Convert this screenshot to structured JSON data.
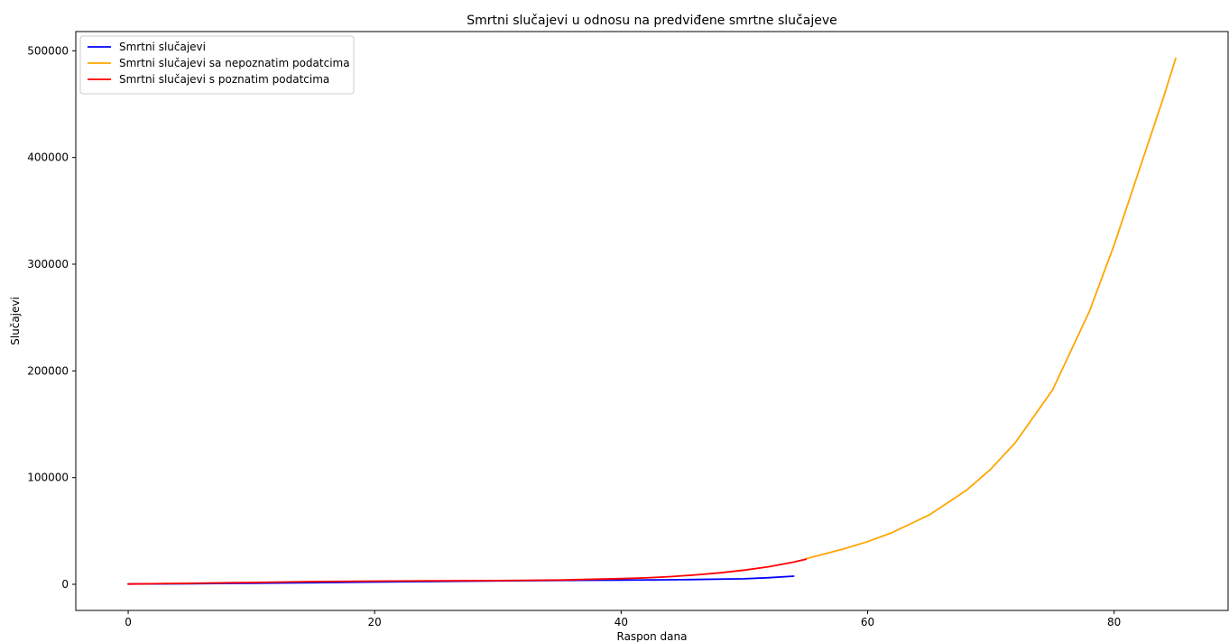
{
  "chart_data": {
    "type": "line",
    "title": "Smrtni slučajevi u odnosu na predviđene smrtne slučajeve",
    "xlabel": "Raspon dana",
    "ylabel": "Slučajevi",
    "xlim": [
      -4.25,
      89.25
    ],
    "ylim": [
      -24500,
      518000
    ],
    "xticks": [
      0,
      20,
      40,
      60,
      80
    ],
    "xtick_labels": [
      "0",
      "20",
      "40",
      "60",
      "80"
    ],
    "yticks": [
      0,
      100000,
      200000,
      300000,
      400000,
      500000
    ],
    "ytick_labels": [
      "0",
      "100000",
      "200000",
      "300000",
      "400000",
      "500000"
    ],
    "grid": false,
    "legend_position": "upper-left",
    "series": [
      {
        "name": "Smrtni slučajevi",
        "color": "#0000ff",
        "x": [
          0,
          5,
          10,
          15,
          20,
          25,
          30,
          35,
          40,
          45,
          50,
          52,
          54
        ],
        "y": [
          300,
          600,
          1000,
          1500,
          2100,
          2700,
          3200,
          3600,
          3900,
          4300,
          5200,
          6200,
          7600
        ]
      },
      {
        "name": "Smrtni slučajevi sa nepoznatim podatcima",
        "color": "#ffa500",
        "x": [
          55,
          58,
          60,
          62,
          65,
          68,
          70,
          72,
          75,
          78,
          80,
          82,
          84,
          85
        ],
        "y": [
          24000,
          33000,
          40000,
          48500,
          65000,
          88000,
          108000,
          133000,
          182000,
          256000,
          318000,
          387000,
          456000,
          493000
        ]
      },
      {
        "name": "Smrtni slučajevi s poznatim podatcima",
        "color": "#ff0000",
        "x": [
          0,
          5,
          10,
          15,
          20,
          25,
          30,
          35,
          40,
          42,
          44,
          46,
          48,
          50,
          52,
          54,
          55
        ],
        "y": [
          300,
          900,
          1700,
          2500,
          3000,
          3300,
          3500,
          4000,
          5300,
          6000,
          7200,
          8800,
          10700,
          13300,
          16500,
          20800,
          23500
        ]
      }
    ]
  }
}
